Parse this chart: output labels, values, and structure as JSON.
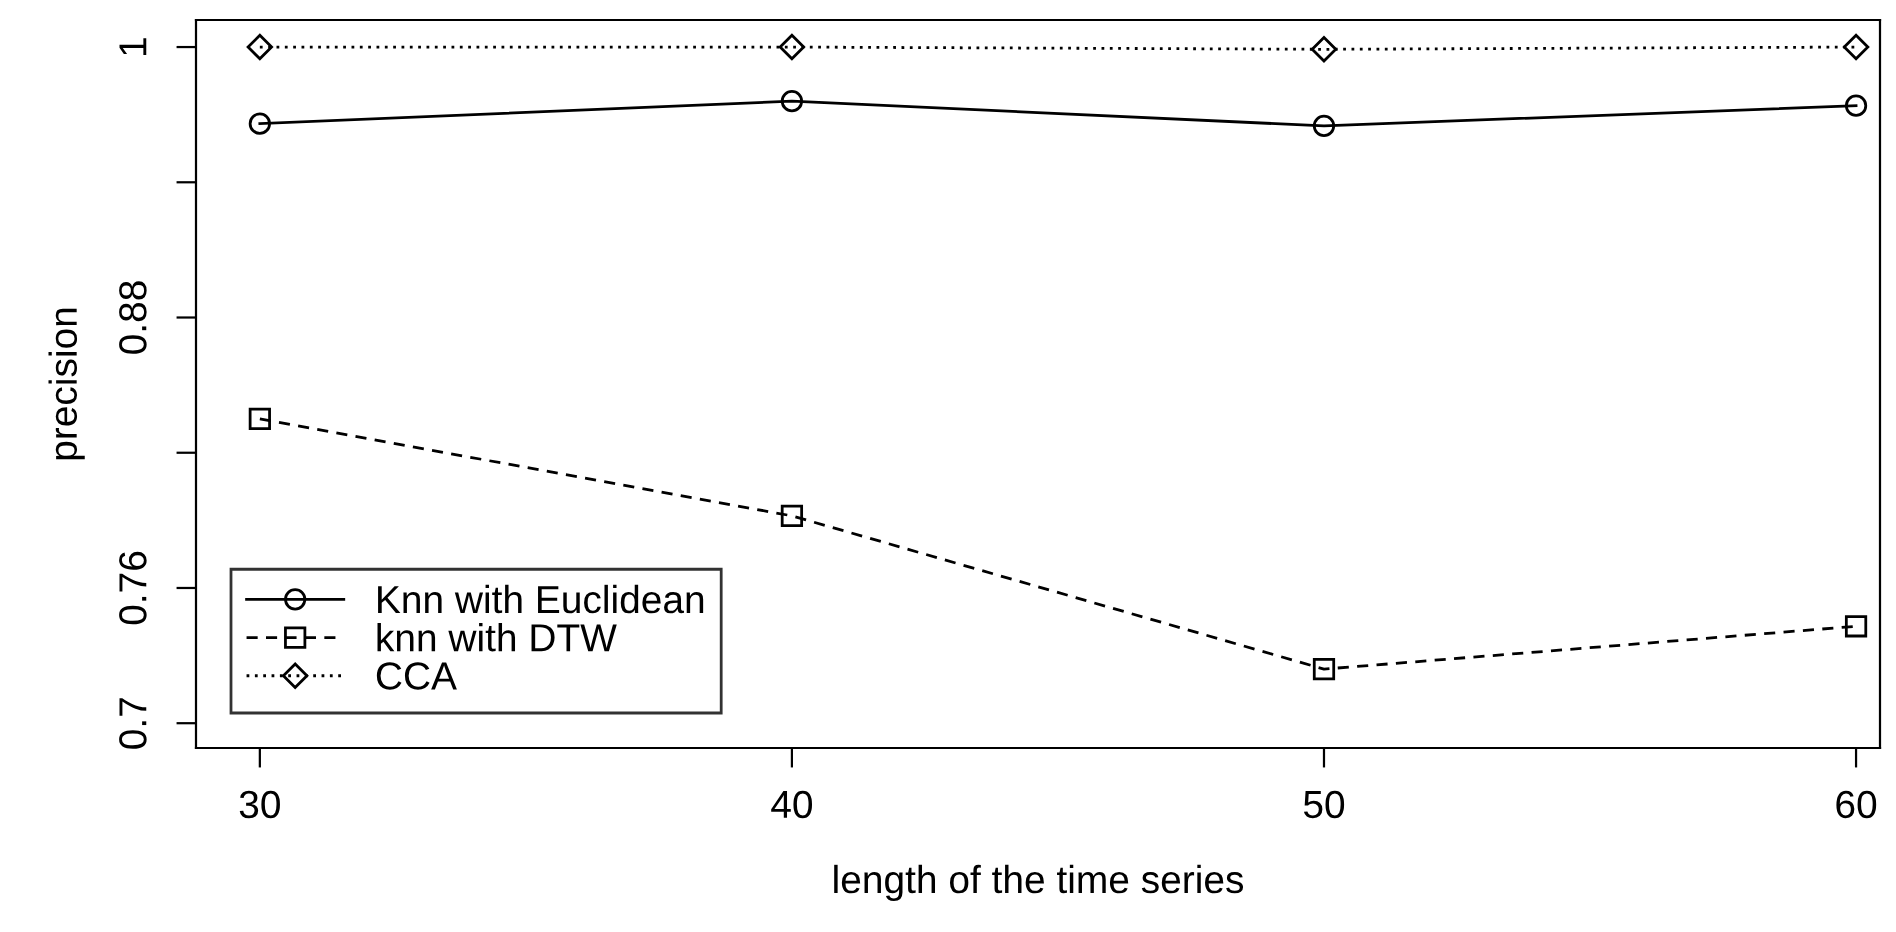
{
  "chart_data": {
    "type": "line",
    "xlabel": "length of the time series",
    "ylabel": "precision",
    "x": [
      30,
      40,
      50,
      60
    ],
    "series": [
      {
        "name": "Knn with Euclidean",
        "color": "#000000",
        "values": [
          0.966,
          0.976,
          0.965,
          0.974
        ],
        "marker": "circle",
        "line_style": "solid"
      },
      {
        "name": "knn with DTW",
        "color": "#000000",
        "values": [
          0.835,
          0.792,
          0.724,
          0.743
        ],
        "marker": "square",
        "line_style": "dashed"
      },
      {
        "name": "CCA",
        "color": "#000000",
        "values": [
          1.0,
          1.0,
          0.999,
          1.0
        ],
        "marker": "diamond",
        "line_style": "dotted"
      }
    ],
    "xlim": [
      28.8,
      60.45
    ],
    "ylim": [
      0.689,
      1.012
    ],
    "xticks": [
      30,
      40,
      50,
      60
    ],
    "yticks": [
      0.7,
      {
        "value": 0.76,
        "label": "0.76"
      },
      {
        "value": 0.82,
        "label": null
      },
      0.88,
      {
        "value": 0.94,
        "label": null
      },
      1
    ],
    "grid": false,
    "legend": "bottom left"
  }
}
